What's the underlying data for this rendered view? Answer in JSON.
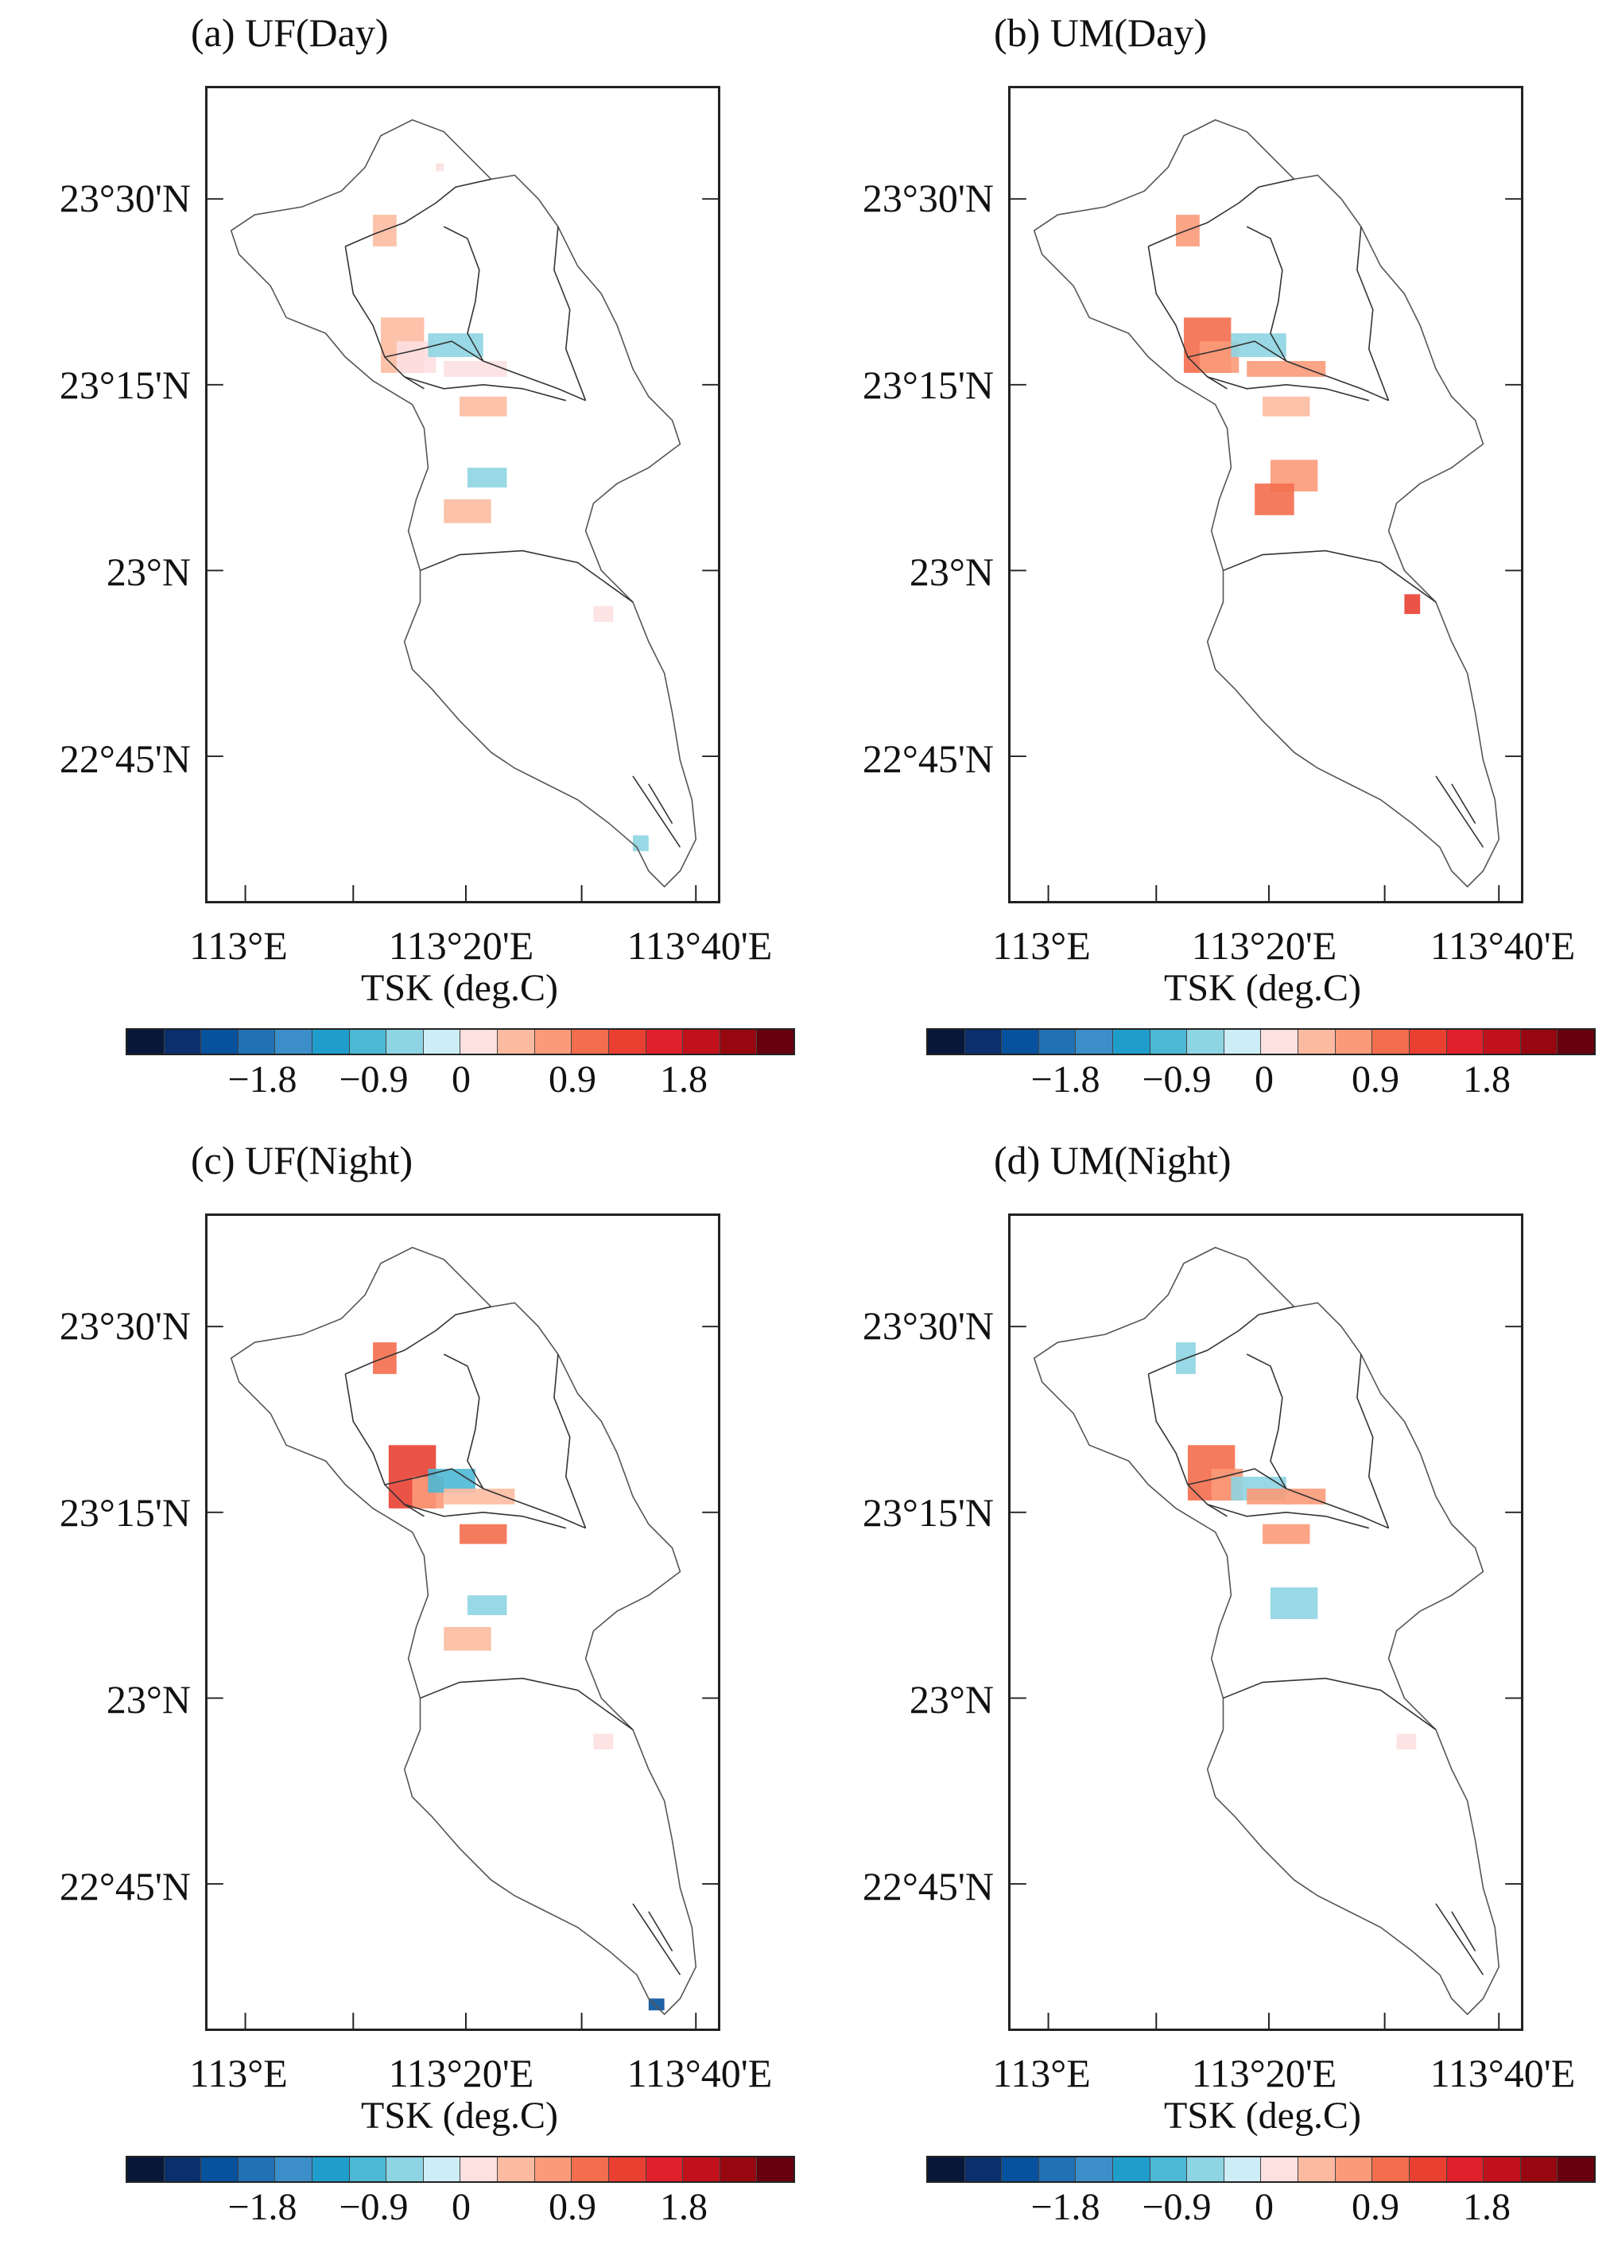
{
  "panels": [
    {
      "id": "a",
      "title": "(a) UF(Day)"
    },
    {
      "id": "b",
      "title": "(b) UM(Day)"
    },
    {
      "id": "c",
      "title": "(c) UF(Night)"
    },
    {
      "id": "d",
      "title": "(d) UM(Night)"
    }
  ],
  "axes": {
    "lat_labels": [
      "23°30'N",
      "23°15'N",
      "23°N",
      "22°45'N"
    ],
    "lon_labels": [
      "113°E",
      "113°20'E",
      "113°40'E"
    ]
  },
  "colorbar": {
    "title": "TSK (deg.C)",
    "tick_labels": [
      "−1.8",
      "−0.9",
      "0",
      "0.9",
      "1.8"
    ],
    "colors": [
      "#08183a",
      "#0b2f6b",
      "#08519c",
      "#2171b5",
      "#3c8ec8",
      "#1f9ecb",
      "#4cb8d5",
      "#8ed4e2",
      "#cdeef7",
      "#fde0e0",
      "#fcbba1",
      "#fb9a79",
      "#f46d4c",
      "#e94032",
      "#e0202b",
      "#c1121c",
      "#96070f",
      "#67000d"
    ]
  },
  "icons": [
    "coastline-boundary",
    "district-boundary"
  ]
}
